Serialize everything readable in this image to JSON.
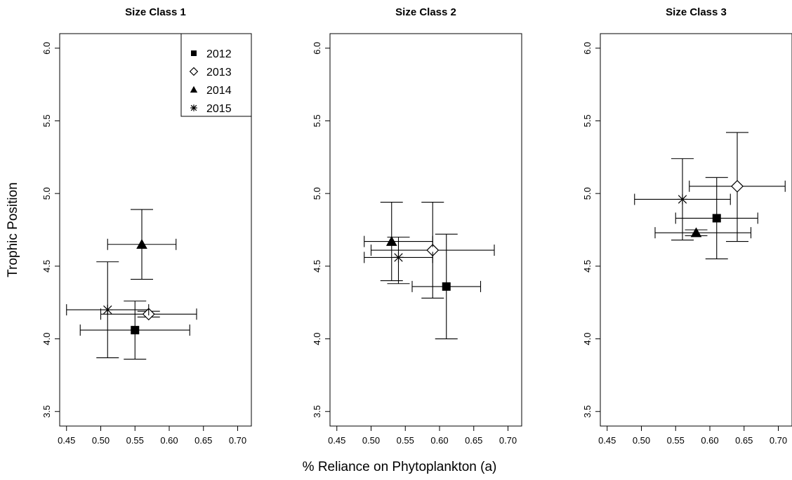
{
  "figure": {
    "ylabel": "Trophic Position",
    "xlabel": "% Reliance on Phytoplankton (a)"
  },
  "legend": [
    {
      "label": "2012",
      "marker": "filled-square"
    },
    {
      "label": "2013",
      "marker": "open-diamond"
    },
    {
      "label": "2014",
      "marker": "filled-triangle"
    },
    {
      "label": "2015",
      "marker": "asterisk"
    }
  ],
  "chart_data": [
    {
      "type": "scatter",
      "title": "Size Class 1",
      "xlim": [
        0.44,
        0.72
      ],
      "ylim": [
        3.4,
        6.1
      ],
      "xticks": [
        "0.45",
        "0.50",
        "0.55",
        "0.60",
        "0.65",
        "0.70"
      ],
      "yticks": [
        "3.5",
        "4.0",
        "4.5",
        "5.0",
        "5.5",
        "6.0"
      ],
      "legend_position": "top-right",
      "series": [
        {
          "name": "2012",
          "x": 0.55,
          "y": 4.06,
          "xerr": [
            0.47,
            0.63
          ],
          "yerr": [
            3.86,
            4.26
          ]
        },
        {
          "name": "2013",
          "x": 0.57,
          "y": 4.17,
          "xerr": [
            0.5,
            0.64
          ],
          "yerr": [
            4.15,
            4.19
          ]
        },
        {
          "name": "2014",
          "x": 0.56,
          "y": 4.65,
          "xerr": [
            0.51,
            0.61
          ],
          "yerr": [
            4.41,
            4.89
          ]
        },
        {
          "name": "2015",
          "x": 0.51,
          "y": 4.2,
          "xerr": [
            0.45,
            0.57
          ],
          "yerr": [
            3.87,
            4.53
          ]
        }
      ]
    },
    {
      "type": "scatter",
      "title": "Size Class 2",
      "xlim": [
        0.44,
        0.72
      ],
      "ylim": [
        3.4,
        6.1
      ],
      "xticks": [
        "0.45",
        "0.50",
        "0.55",
        "0.60",
        "0.65",
        "0.70"
      ],
      "yticks": [
        "3.5",
        "4.0",
        "4.5",
        "5.0",
        "5.5",
        "6.0"
      ],
      "series": [
        {
          "name": "2012",
          "x": 0.61,
          "y": 4.36,
          "xerr": [
            0.56,
            0.66
          ],
          "yerr": [
            4.0,
            4.72
          ]
        },
        {
          "name": "2013",
          "x": 0.59,
          "y": 4.61,
          "xerr": [
            0.5,
            0.68
          ],
          "yerr": [
            4.28,
            4.94
          ]
        },
        {
          "name": "2014",
          "x": 0.53,
          "y": 4.67,
          "xerr": [
            0.49,
            0.59
          ],
          "yerr": [
            4.4,
            4.94
          ]
        },
        {
          "name": "2015",
          "x": 0.54,
          "y": 4.56,
          "xerr": [
            0.49,
            0.59
          ],
          "yerr": [
            4.38,
            4.7
          ]
        }
      ]
    },
    {
      "type": "scatter",
      "title": "Size Class 3",
      "xlim": [
        0.44,
        0.72
      ],
      "ylim": [
        3.4,
        6.1
      ],
      "xticks": [
        "0.45",
        "0.50",
        "0.55",
        "0.60",
        "0.65",
        "0.70"
      ],
      "yticks": [
        "3.5",
        "4.0",
        "4.5",
        "5.0",
        "5.5",
        "6.0"
      ],
      "series": [
        {
          "name": "2012",
          "x": 0.61,
          "y": 4.83,
          "xerr": [
            0.55,
            0.67
          ],
          "yerr": [
            4.55,
            5.11
          ]
        },
        {
          "name": "2013",
          "x": 0.64,
          "y": 5.05,
          "xerr": [
            0.57,
            0.71
          ],
          "yerr": [
            4.67,
            5.42
          ]
        },
        {
          "name": "2014",
          "x": 0.58,
          "y": 4.73,
          "xerr": [
            0.52,
            0.66
          ],
          "yerr": [
            4.71,
            4.75
          ]
        },
        {
          "name": "2015",
          "x": 0.56,
          "y": 4.96,
          "xerr": [
            0.49,
            0.63
          ],
          "yerr": [
            4.68,
            5.24
          ]
        }
      ]
    }
  ]
}
